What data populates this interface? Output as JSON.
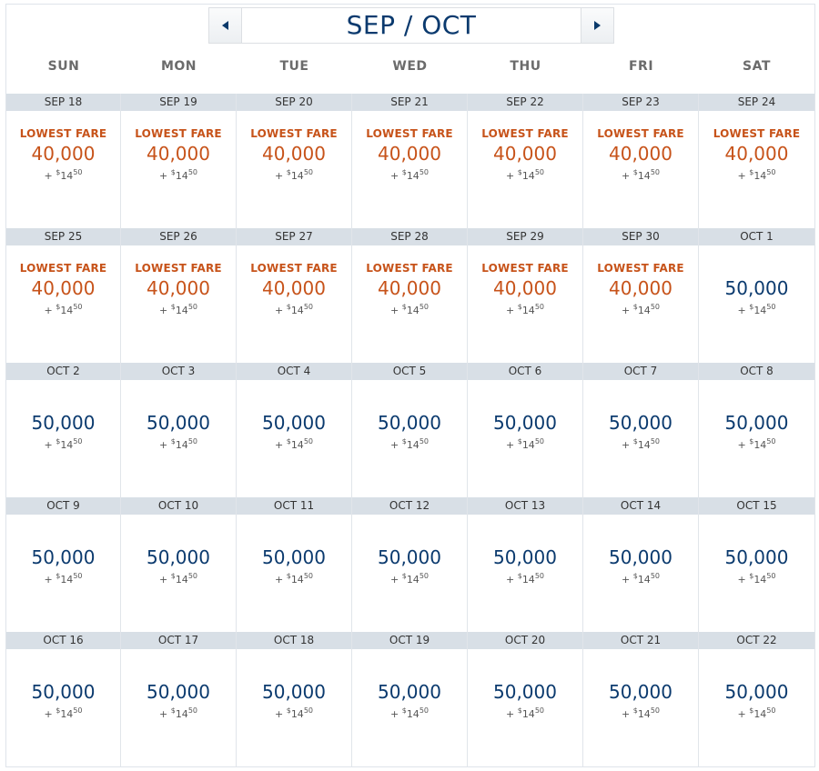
{
  "header": {
    "title": "SEP / OCT"
  },
  "weekdays": [
    "SUN",
    "MON",
    "TUE",
    "WED",
    "THU",
    "FRI",
    "SAT"
  ],
  "fare_labels": {
    "lowest": "LOWEST FARE"
  },
  "colors": {
    "lowest_fare": "#c7531a",
    "regular_fare": "#0b3a6e",
    "date_bar": "#d8dfe6"
  },
  "weeks": [
    [
      {
        "date": "SEP 18",
        "miles": "40,000",
        "lowest": true,
        "plus": "+",
        "dollar": "$",
        "fee": "14",
        "cents": "50"
      },
      {
        "date": "SEP 19",
        "miles": "40,000",
        "lowest": true,
        "plus": "+",
        "dollar": "$",
        "fee": "14",
        "cents": "50"
      },
      {
        "date": "SEP 20",
        "miles": "40,000",
        "lowest": true,
        "plus": "+",
        "dollar": "$",
        "fee": "14",
        "cents": "50"
      },
      {
        "date": "SEP 21",
        "miles": "40,000",
        "lowest": true,
        "plus": "+",
        "dollar": "$",
        "fee": "14",
        "cents": "50"
      },
      {
        "date": "SEP 22",
        "miles": "40,000",
        "lowest": true,
        "plus": "+",
        "dollar": "$",
        "fee": "14",
        "cents": "50"
      },
      {
        "date": "SEP 23",
        "miles": "40,000",
        "lowest": true,
        "plus": "+",
        "dollar": "$",
        "fee": "14",
        "cents": "50"
      },
      {
        "date": "SEP 24",
        "miles": "40,000",
        "lowest": true,
        "plus": "+",
        "dollar": "$",
        "fee": "14",
        "cents": "50"
      }
    ],
    [
      {
        "date": "SEP 25",
        "miles": "40,000",
        "lowest": true,
        "plus": "+",
        "dollar": "$",
        "fee": "14",
        "cents": "50"
      },
      {
        "date": "SEP 26",
        "miles": "40,000",
        "lowest": true,
        "plus": "+",
        "dollar": "$",
        "fee": "14",
        "cents": "50"
      },
      {
        "date": "SEP 27",
        "miles": "40,000",
        "lowest": true,
        "plus": "+",
        "dollar": "$",
        "fee": "14",
        "cents": "50"
      },
      {
        "date": "SEP 28",
        "miles": "40,000",
        "lowest": true,
        "plus": "+",
        "dollar": "$",
        "fee": "14",
        "cents": "50"
      },
      {
        "date": "SEP 29",
        "miles": "40,000",
        "lowest": true,
        "plus": "+",
        "dollar": "$",
        "fee": "14",
        "cents": "50"
      },
      {
        "date": "SEP 30",
        "miles": "40,000",
        "lowest": true,
        "plus": "+",
        "dollar": "$",
        "fee": "14",
        "cents": "50"
      },
      {
        "date": "OCT 1",
        "miles": "50,000",
        "lowest": false,
        "plus": "+",
        "dollar": "$",
        "fee": "14",
        "cents": "50"
      }
    ],
    [
      {
        "date": "OCT 2",
        "miles": "50,000",
        "lowest": false,
        "plus": "+",
        "dollar": "$",
        "fee": "14",
        "cents": "50"
      },
      {
        "date": "OCT 3",
        "miles": "50,000",
        "lowest": false,
        "plus": "+",
        "dollar": "$",
        "fee": "14",
        "cents": "50"
      },
      {
        "date": "OCT 4",
        "miles": "50,000",
        "lowest": false,
        "plus": "+",
        "dollar": "$",
        "fee": "14",
        "cents": "50"
      },
      {
        "date": "OCT 5",
        "miles": "50,000",
        "lowest": false,
        "plus": "+",
        "dollar": "$",
        "fee": "14",
        "cents": "50"
      },
      {
        "date": "OCT 6",
        "miles": "50,000",
        "lowest": false,
        "plus": "+",
        "dollar": "$",
        "fee": "14",
        "cents": "50"
      },
      {
        "date": "OCT 7",
        "miles": "50,000",
        "lowest": false,
        "plus": "+",
        "dollar": "$",
        "fee": "14",
        "cents": "50"
      },
      {
        "date": "OCT 8",
        "miles": "50,000",
        "lowest": false,
        "plus": "+",
        "dollar": "$",
        "fee": "14",
        "cents": "50"
      }
    ],
    [
      {
        "date": "OCT 9",
        "miles": "50,000",
        "lowest": false,
        "plus": "+",
        "dollar": "$",
        "fee": "14",
        "cents": "50"
      },
      {
        "date": "OCT 10",
        "miles": "50,000",
        "lowest": false,
        "plus": "+",
        "dollar": "$",
        "fee": "14",
        "cents": "50"
      },
      {
        "date": "OCT 11",
        "miles": "50,000",
        "lowest": false,
        "plus": "+",
        "dollar": "$",
        "fee": "14",
        "cents": "50"
      },
      {
        "date": "OCT 12",
        "miles": "50,000",
        "lowest": false,
        "plus": "+",
        "dollar": "$",
        "fee": "14",
        "cents": "50"
      },
      {
        "date": "OCT 13",
        "miles": "50,000",
        "lowest": false,
        "plus": "+",
        "dollar": "$",
        "fee": "14",
        "cents": "50"
      },
      {
        "date": "OCT 14",
        "miles": "50,000",
        "lowest": false,
        "plus": "+",
        "dollar": "$",
        "fee": "14",
        "cents": "50"
      },
      {
        "date": "OCT 15",
        "miles": "50,000",
        "lowest": false,
        "plus": "+",
        "dollar": "$",
        "fee": "14",
        "cents": "50"
      }
    ],
    [
      {
        "date": "OCT 16",
        "miles": "50,000",
        "lowest": false,
        "plus": "+",
        "dollar": "$",
        "fee": "14",
        "cents": "50"
      },
      {
        "date": "OCT 17",
        "miles": "50,000",
        "lowest": false,
        "plus": "+",
        "dollar": "$",
        "fee": "14",
        "cents": "50"
      },
      {
        "date": "OCT 18",
        "miles": "50,000",
        "lowest": false,
        "plus": "+",
        "dollar": "$",
        "fee": "14",
        "cents": "50"
      },
      {
        "date": "OCT 19",
        "miles": "50,000",
        "lowest": false,
        "plus": "+",
        "dollar": "$",
        "fee": "14",
        "cents": "50"
      },
      {
        "date": "OCT 20",
        "miles": "50,000",
        "lowest": false,
        "plus": "+",
        "dollar": "$",
        "fee": "14",
        "cents": "50"
      },
      {
        "date": "OCT 21",
        "miles": "50,000",
        "lowest": false,
        "plus": "+",
        "dollar": "$",
        "fee": "14",
        "cents": "50"
      },
      {
        "date": "OCT 22",
        "miles": "50,000",
        "lowest": false,
        "plus": "+",
        "dollar": "$",
        "fee": "14",
        "cents": "50"
      }
    ]
  ]
}
